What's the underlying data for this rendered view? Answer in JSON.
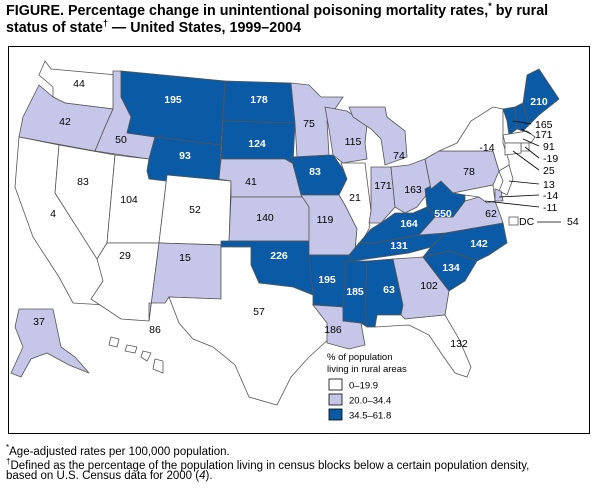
{
  "title": {
    "prefix": "FIGURE. Percentage change in unintentional poisoning mortality rates,",
    "mark1": "*",
    "middle": " by rural status of state",
    "mark2": "†",
    "suffix": " — United States, 1999–2004"
  },
  "colors": {
    "light": "#ffffff",
    "mid": "#c6c6e8",
    "dark": "#0a5aa5",
    "border": "#555555"
  },
  "states": [
    {
      "abbr": "WA",
      "value": "44",
      "cls": "light"
    },
    {
      "abbr": "OR",
      "value": "42",
      "cls": "mid"
    },
    {
      "abbr": "ID",
      "value": "50",
      "cls": "mid"
    },
    {
      "abbr": "CA",
      "value": "4",
      "cls": "light"
    },
    {
      "abbr": "NV",
      "value": "83",
      "cls": "light"
    },
    {
      "abbr": "UT",
      "value": "104",
      "cls": "light"
    },
    {
      "abbr": "AZ",
      "value": "29",
      "cls": "light"
    },
    {
      "abbr": "MT",
      "value": "195",
      "cls": "dark"
    },
    {
      "abbr": "WY",
      "value": "93",
      "cls": "dark"
    },
    {
      "abbr": "CO",
      "value": "52",
      "cls": "light"
    },
    {
      "abbr": "NM",
      "value": "15",
      "cls": "mid"
    },
    {
      "abbr": "ND",
      "value": "178",
      "cls": "dark"
    },
    {
      "abbr": "SD",
      "value": "124",
      "cls": "dark"
    },
    {
      "abbr": "NE",
      "value": "41",
      "cls": "mid"
    },
    {
      "abbr": "KS",
      "value": "140",
      "cls": "mid"
    },
    {
      "abbr": "OK",
      "value": "226",
      "cls": "dark"
    },
    {
      "abbr": "TX",
      "value": "57",
      "cls": "light"
    },
    {
      "abbr": "MN",
      "value": "75",
      "cls": "mid"
    },
    {
      "abbr": "IA",
      "value": "83",
      "cls": "dark"
    },
    {
      "abbr": "MO",
      "value": "119",
      "cls": "mid"
    },
    {
      "abbr": "AR",
      "value": "195",
      "cls": "dark"
    },
    {
      "abbr": "LA",
      "value": "186",
      "cls": "mid"
    },
    {
      "abbr": "WI",
      "value": "115",
      "cls": "mid"
    },
    {
      "abbr": "IL",
      "value": "21",
      "cls": "light"
    },
    {
      "abbr": "MI",
      "value": "74",
      "cls": "mid"
    },
    {
      "abbr": "IN",
      "value": "171",
      "cls": "mid"
    },
    {
      "abbr": "OH",
      "value": "163",
      "cls": "mid"
    },
    {
      "abbr": "KY",
      "value": "164",
      "cls": "dark"
    },
    {
      "abbr": "TN",
      "value": "131",
      "cls": "dark"
    },
    {
      "abbr": "MS",
      "value": "185",
      "cls": "dark"
    },
    {
      "abbr": "AL",
      "value": "63",
      "cls": "dark"
    },
    {
      "abbr": "GA",
      "value": "102",
      "cls": "mid"
    },
    {
      "abbr": "FL",
      "value": "132",
      "cls": "light"
    },
    {
      "abbr": "SC",
      "value": "134",
      "cls": "dark"
    },
    {
      "abbr": "NC",
      "value": "142",
      "cls": "dark"
    },
    {
      "abbr": "VA",
      "value": "62",
      "cls": "mid"
    },
    {
      "abbr": "WV",
      "value": "550",
      "cls": "dark"
    },
    {
      "abbr": "PA",
      "value": "78",
      "cls": "mid"
    },
    {
      "abbr": "NY",
      "value": "-14",
      "cls": "light"
    },
    {
      "abbr": "ME",
      "value": "210",
      "cls": "dark"
    },
    {
      "abbr": "VT",
      "value": "165",
      "cls": "dark"
    },
    {
      "abbr": "NH",
      "value": "171",
      "cls": "dark"
    },
    {
      "abbr": "MA",
      "value": "91",
      "cls": "light"
    },
    {
      "abbr": "RI",
      "value": "-19",
      "cls": "light"
    },
    {
      "abbr": "CT",
      "value": "25",
      "cls": "light"
    },
    {
      "abbr": "NJ",
      "value": "13",
      "cls": "light"
    },
    {
      "abbr": "DE",
      "value": "-14",
      "cls": "mid"
    },
    {
      "abbr": "MD",
      "value": "-11",
      "cls": "light"
    },
    {
      "abbr": "DC",
      "value": "54",
      "cls": "light"
    },
    {
      "abbr": "AK",
      "value": "37",
      "cls": "mid"
    },
    {
      "abbr": "HI",
      "value": "86",
      "cls": "light"
    }
  ],
  "dc_label": "DC",
  "legend": {
    "title_line1": "% of population",
    "title_line2": "living in rural areas",
    "items": [
      {
        "label": "0–19.9",
        "cls": "light"
      },
      {
        "label": "20.0–34.4",
        "cls": "mid"
      },
      {
        "label": "34.5–61.8",
        "cls": "dark"
      }
    ]
  },
  "footnotes": {
    "f1_mark": "*",
    "f1_text": "Age-adjusted rates per 100,000 population.",
    "f2_mark": "†",
    "f2_text_line1": "Defined as the percentage of the population living in census blocks below a certain population density,",
    "f2_text_line2_pre": "based on U.S. Census data for 2000 (",
    "f2_text_line2_ref": "4",
    "f2_text_line2_post": ")."
  }
}
